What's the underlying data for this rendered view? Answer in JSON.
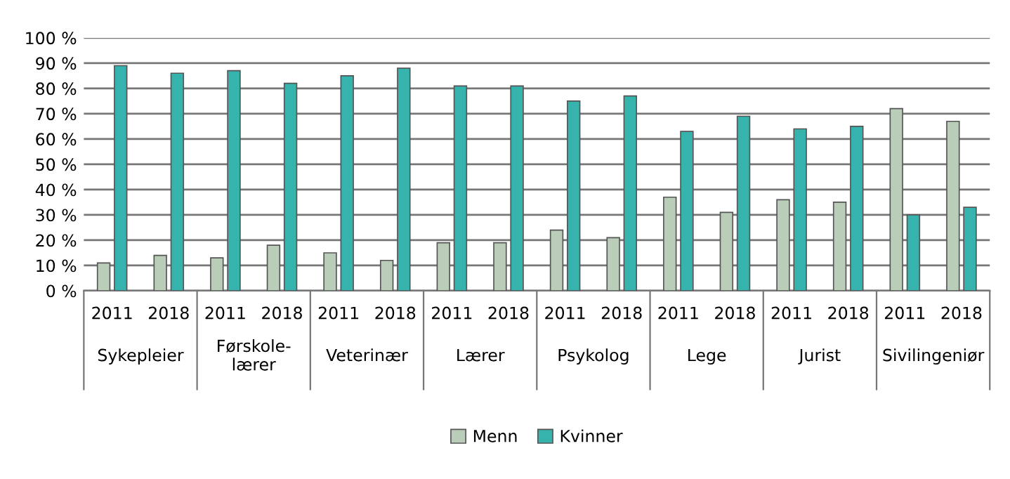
{
  "chart_data": {
    "type": "bar",
    "categories": [
      "2011",
      "2018",
      "2011",
      "2018",
      "2011",
      "2018",
      "2011",
      "2018",
      "2011",
      "2018",
      "2011",
      "2018",
      "2011",
      "2018",
      "2011",
      "2018"
    ],
    "series": [
      {
        "name": "Menn",
        "color": "#b9cdb9",
        "values": [
          11,
          14,
          13,
          18,
          15,
          12,
          19,
          19,
          24,
          21,
          37,
          31,
          36,
          35,
          72,
          67
        ]
      },
      {
        "name": "Kvinner",
        "color": "#36b3ad",
        "values": [
          89,
          86,
          87,
          82,
          85,
          88,
          81,
          81,
          75,
          77,
          63,
          69,
          64,
          65,
          30,
          33
        ]
      }
    ],
    "annotations": [
      "Sykepleier",
      "Førskole-\nlærer",
      "Veterinær",
      "Lærer",
      "Psykolog",
      "Lege",
      "Jurist",
      "Sivilingeniør"
    ],
    "ylim": [
      0,
      100
    ],
    "yticks": [
      {
        "value": 0,
        "label": "0 %"
      },
      {
        "value": 10,
        "label": "10 %"
      },
      {
        "value": 20,
        "label": "20 %"
      },
      {
        "value": 30,
        "label": "30 %"
      },
      {
        "value": 40,
        "label": "40 %"
      },
      {
        "value": 50,
        "label": "50 %"
      },
      {
        "value": 60,
        "label": "60 %"
      },
      {
        "value": 70,
        "label": "70 %"
      },
      {
        "value": 80,
        "label": "80 %"
      },
      {
        "value": 90,
        "label": "90 %"
      },
      {
        "value": 100,
        "label": "100 %"
      }
    ],
    "grid": "y",
    "legend": "bottom"
  }
}
